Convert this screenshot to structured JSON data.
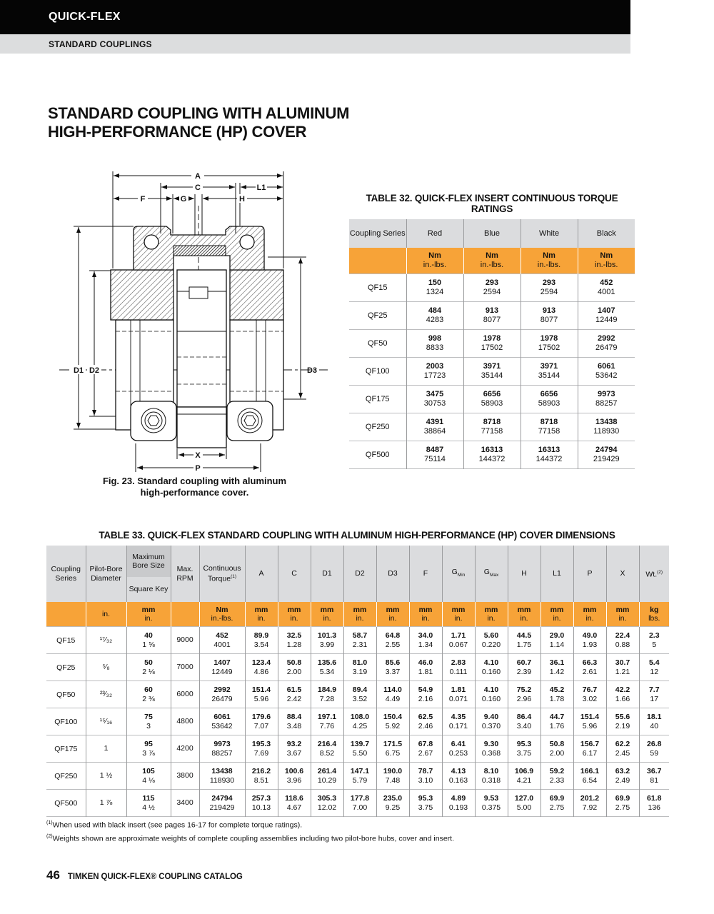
{
  "page": {
    "brand": "QUICK-FLEX",
    "section": "STANDARD COUPLINGS",
    "title_line1": "STANDARD COUPLING WITH ALUMINUM",
    "title_line2": "HIGH-PERFORMANCE (HP) COVER",
    "page_number": "46",
    "footer": "TIMKEN QUICK-FLEX® COUPLING CATALOG"
  },
  "figure": {
    "caption_line1": "Fig. 23. Standard coupling with aluminum",
    "caption_line2": "high-performance cover.",
    "dims": {
      "A": "A",
      "C": "C",
      "L1": "L1",
      "F": "F",
      "G": "G",
      "H": "H",
      "D1": "D1",
      "D2": "D2",
      "D3": "D3",
      "X": "X",
      "P": "P"
    }
  },
  "table32": {
    "title": "TABLE 32. QUICK-FLEX INSERT CONTINUOUS TORQUE RATINGS",
    "corner_header": "Coupling Series",
    "color_headers": [
      "Red",
      "Blue",
      "White",
      "Black"
    ],
    "units": [
      "Nm",
      "in.-lbs."
    ],
    "rows": [
      {
        "series": "QF15",
        "values": [
          [
            "150",
            "1324"
          ],
          [
            "293",
            "2594"
          ],
          [
            "293",
            "2594"
          ],
          [
            "452",
            "4001"
          ]
        ]
      },
      {
        "series": "QF25",
        "values": [
          [
            "484",
            "4283"
          ],
          [
            "913",
            "8077"
          ],
          [
            "913",
            "8077"
          ],
          [
            "1407",
            "12449"
          ]
        ]
      },
      {
        "series": "QF50",
        "values": [
          [
            "998",
            "8833"
          ],
          [
            "1978",
            "17502"
          ],
          [
            "1978",
            "17502"
          ],
          [
            "2992",
            "26479"
          ]
        ]
      },
      {
        "series": "QF100",
        "values": [
          [
            "2003",
            "17723"
          ],
          [
            "3971",
            "35144"
          ],
          [
            "3971",
            "35144"
          ],
          [
            "6061",
            "53642"
          ]
        ]
      },
      {
        "series": "QF175",
        "values": [
          [
            "3475",
            "30753"
          ],
          [
            "6656",
            "58903"
          ],
          [
            "6656",
            "58903"
          ],
          [
            "9973",
            "88257"
          ]
        ]
      },
      {
        "series": "QF250",
        "values": [
          [
            "4391",
            "38864"
          ],
          [
            "8718",
            "77158"
          ],
          [
            "8718",
            "77158"
          ],
          [
            "13438",
            "118930"
          ]
        ]
      },
      {
        "series": "QF500",
        "values": [
          [
            "8487",
            "75114"
          ],
          [
            "16313",
            "144372"
          ],
          [
            "16313",
            "144372"
          ],
          [
            "24794",
            "219429"
          ]
        ]
      }
    ]
  },
  "table33": {
    "title": "TABLE 33. QUICK-FLEX STANDARD COUPLING WITH ALUMINUM HIGH-PERFORMANCE (HP) COVER DIMENSIONS",
    "columns": [
      {
        "id": "series",
        "label": "Coupling Series"
      },
      {
        "id": "pilot",
        "label": "Pilot-Bore Diameter"
      },
      {
        "id": "bore",
        "top": "Maximum Bore Size",
        "bottom": "Square Key"
      },
      {
        "id": "rpm",
        "label": "Max. RPM"
      },
      {
        "id": "torque",
        "label": "Continuous Torque",
        "sup": "(1)"
      },
      {
        "id": "A",
        "label": "A"
      },
      {
        "id": "C",
        "label": "C"
      },
      {
        "id": "D1",
        "label": "D1"
      },
      {
        "id": "D2",
        "label": "D2"
      },
      {
        "id": "D3",
        "label": "D3"
      },
      {
        "id": "F",
        "label": "F"
      },
      {
        "id": "Gmin",
        "label": "G",
        "sub": "Min"
      },
      {
        "id": "Gmax",
        "label": "G",
        "sub": "Max"
      },
      {
        "id": "H",
        "label": "H"
      },
      {
        "id": "L1",
        "label": "L1"
      },
      {
        "id": "P",
        "label": "P"
      },
      {
        "id": "X",
        "label": "X"
      },
      {
        "id": "wt",
        "label": "Wt.",
        "sup": "(2)"
      }
    ],
    "units": [
      [
        ""
      ],
      [
        "in."
      ],
      [
        "mm",
        "in."
      ],
      [
        ""
      ],
      [
        "Nm",
        "in.-lbs."
      ],
      [
        "mm",
        "in."
      ],
      [
        "mm",
        "in."
      ],
      [
        "mm",
        "in."
      ],
      [
        "mm",
        "in."
      ],
      [
        "mm",
        "in."
      ],
      [
        "mm",
        "in."
      ],
      [
        "mm",
        "in."
      ],
      [
        "mm",
        "in."
      ],
      [
        "mm",
        "in."
      ],
      [
        "mm",
        "in."
      ],
      [
        "mm",
        "in."
      ],
      [
        "mm",
        "in."
      ],
      [
        "kg",
        "lbs."
      ]
    ],
    "rows": [
      {
        "series": "QF15",
        "cells": [
          [
            "¹⁷⁄₃₂"
          ],
          [
            "40",
            "1 ⅝"
          ],
          [
            "9000"
          ],
          [
            "452",
            "4001"
          ],
          [
            "89.9",
            "3.54"
          ],
          [
            "32.5",
            "1.28"
          ],
          [
            "101.3",
            "3.99"
          ],
          [
            "58.7",
            "2.31"
          ],
          [
            "64.8",
            "2.55"
          ],
          [
            "34.0",
            "1.34"
          ],
          [
            "1.71",
            "0.067"
          ],
          [
            "5.60",
            "0.220"
          ],
          [
            "44.5",
            "1.75"
          ],
          [
            "29.0",
            "1.14"
          ],
          [
            "49.0",
            "1.93"
          ],
          [
            "22.4",
            "0.88"
          ],
          [
            "2.3",
            "5"
          ]
        ]
      },
      {
        "series": "QF25",
        "cells": [
          [
            "⁵⁄₈"
          ],
          [
            "50",
            "2 ⅛"
          ],
          [
            "7000"
          ],
          [
            "1407",
            "12449"
          ],
          [
            "123.4",
            "4.86"
          ],
          [
            "50.8",
            "2.00"
          ],
          [
            "135.6",
            "5.34"
          ],
          [
            "81.0",
            "3.19"
          ],
          [
            "85.6",
            "3.37"
          ],
          [
            "46.0",
            "1.81"
          ],
          [
            "2.83",
            "0.111"
          ],
          [
            "4.10",
            "0.160"
          ],
          [
            "60.7",
            "2.39"
          ],
          [
            "36.1",
            "1.42"
          ],
          [
            "66.3",
            "2.61"
          ],
          [
            "30.7",
            "1.21"
          ],
          [
            "5.4",
            "12"
          ]
        ]
      },
      {
        "series": "QF50",
        "cells": [
          [
            "²³⁄₃₂"
          ],
          [
            "60",
            "2 ⅜"
          ],
          [
            "6000"
          ],
          [
            "2992",
            "26479"
          ],
          [
            "151.4",
            "5.96"
          ],
          [
            "61.5",
            "2.42"
          ],
          [
            "184.9",
            "7.28"
          ],
          [
            "89.4",
            "3.52"
          ],
          [
            "114.0",
            "4.49"
          ],
          [
            "54.9",
            "2.16"
          ],
          [
            "1.81",
            "0.071"
          ],
          [
            "4.10",
            "0.160"
          ],
          [
            "75.2",
            "2.96"
          ],
          [
            "45.2",
            "1.78"
          ],
          [
            "76.7",
            "3.02"
          ],
          [
            "42.2",
            "1.66"
          ],
          [
            "7.7",
            "17"
          ]
        ]
      },
      {
        "series": "QF100",
        "cells": [
          [
            "¹⁵⁄₁₆"
          ],
          [
            "75",
            "3"
          ],
          [
            "4800"
          ],
          [
            "6061",
            "53642"
          ],
          [
            "179.6",
            "7.07"
          ],
          [
            "88.4",
            "3.48"
          ],
          [
            "197.1",
            "7.76"
          ],
          [
            "108.0",
            "4.25"
          ],
          [
            "150.4",
            "5.92"
          ],
          [
            "62.5",
            "2.46"
          ],
          [
            "4.35",
            "0.171"
          ],
          [
            "9.40",
            "0.370"
          ],
          [
            "86.4",
            "3.40"
          ],
          [
            "44.7",
            "1.76"
          ],
          [
            "151.4",
            "5.96"
          ],
          [
            "55.6",
            "2.19"
          ],
          [
            "18.1",
            "40"
          ]
        ]
      },
      {
        "series": "QF175",
        "cells": [
          [
            "1"
          ],
          [
            "95",
            "3 ⅞"
          ],
          [
            "4200"
          ],
          [
            "9973",
            "88257"
          ],
          [
            "195.3",
            "7.69"
          ],
          [
            "93.2",
            "3.67"
          ],
          [
            "216.4",
            "8.52"
          ],
          [
            "139.7",
            "5.50"
          ],
          [
            "171.5",
            "6.75"
          ],
          [
            "67.8",
            "2.67"
          ],
          [
            "6.41",
            "0.253"
          ],
          [
            "9.30",
            "0.368"
          ],
          [
            "95.3",
            "3.75"
          ],
          [
            "50.8",
            "2.00"
          ],
          [
            "156.7",
            "6.17"
          ],
          [
            "62.2",
            "2.45"
          ],
          [
            "26.8",
            "59"
          ]
        ]
      },
      {
        "series": "QF250",
        "cells": [
          [
            "1 ½"
          ],
          [
            "105",
            "4 ⅛"
          ],
          [
            "3800"
          ],
          [
            "13438",
            "118930"
          ],
          [
            "216.2",
            "8.51"
          ],
          [
            "100.6",
            "3.96"
          ],
          [
            "261.4",
            "10.29"
          ],
          [
            "147.1",
            "5.79"
          ],
          [
            "190.0",
            "7.48"
          ],
          [
            "78.7",
            "3.10"
          ],
          [
            "4.13",
            "0.163"
          ],
          [
            "8.10",
            "0.318"
          ],
          [
            "106.9",
            "4.21"
          ],
          [
            "59.2",
            "2.33"
          ],
          [
            "166.1",
            "6.54"
          ],
          [
            "63.2",
            "2.49"
          ],
          [
            "36.7",
            "81"
          ]
        ]
      },
      {
        "series": "QF500",
        "cells": [
          [
            "1 ⅞"
          ],
          [
            "115",
            "4 ½"
          ],
          [
            "3400"
          ],
          [
            "24794",
            "219429"
          ],
          [
            "257.3",
            "10.13"
          ],
          [
            "118.6",
            "4.67"
          ],
          [
            "305.3",
            "12.02"
          ],
          [
            "177.8",
            "7.00"
          ],
          [
            "235.0",
            "9.25"
          ],
          [
            "95.3",
            "3.75"
          ],
          [
            "4.89",
            "0.193"
          ],
          [
            "9.53",
            "0.375"
          ],
          [
            "127.0",
            "5.00"
          ],
          [
            "69.9",
            "2.75"
          ],
          [
            "201.2",
            "7.92"
          ],
          [
            "69.9",
            "2.75"
          ],
          [
            "61.8",
            "136"
          ]
        ]
      }
    ]
  },
  "footnotes": [
    {
      "sup": "(1)",
      "text": "When used with black insert (see pages 16-17 for complete torque ratings)."
    },
    {
      "sup": "(2)",
      "text": "Weights shown are approximate weights of complete coupling assemblies including two pilot-bore hubs, cover and insert."
    }
  ]
}
